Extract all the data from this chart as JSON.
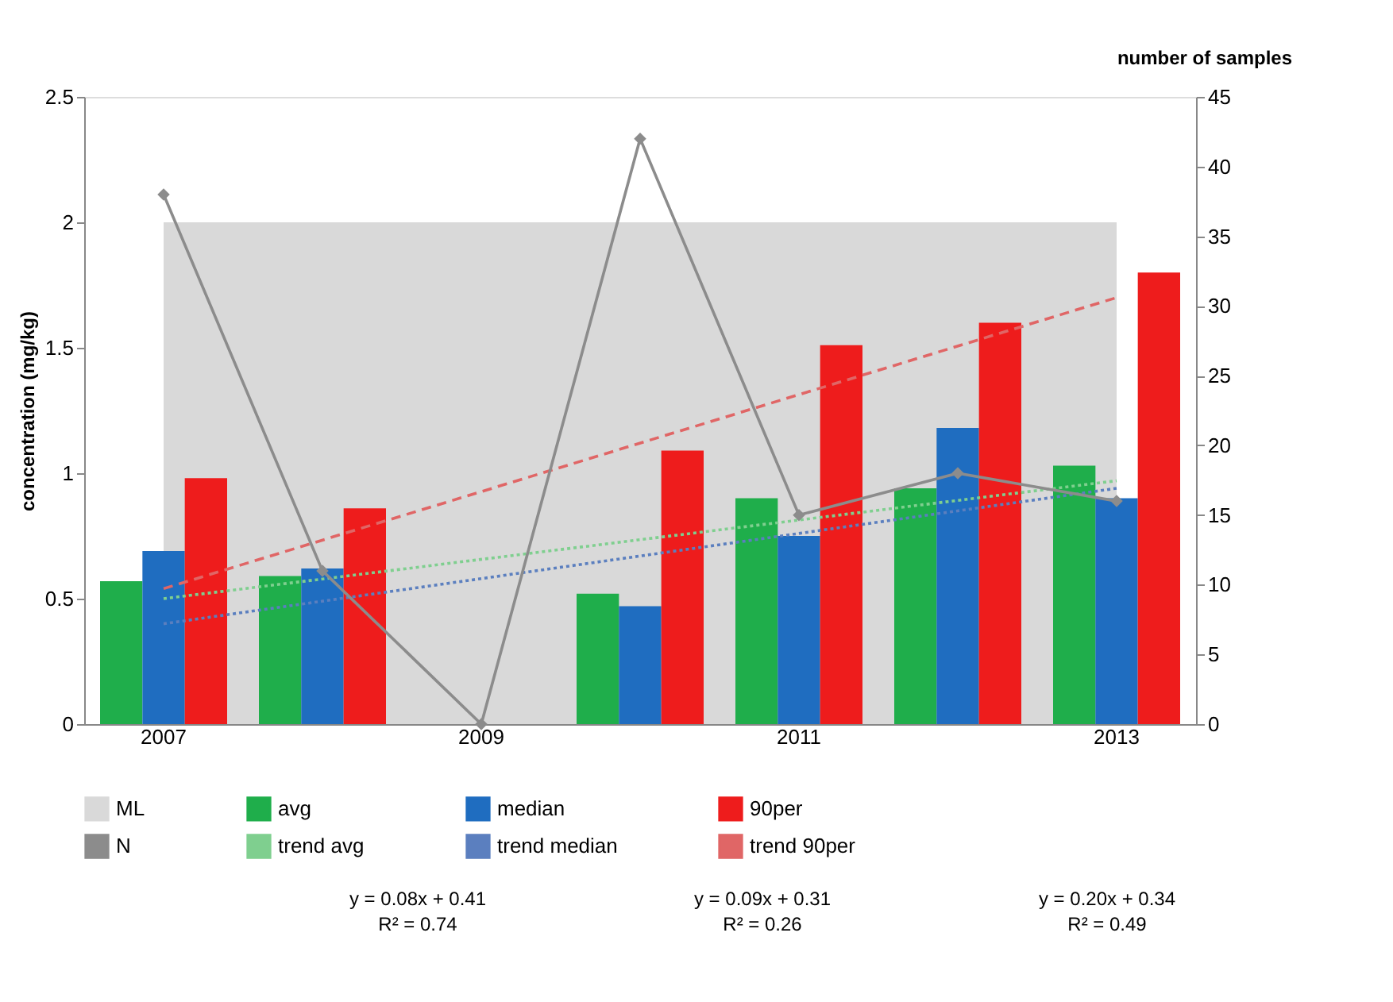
{
  "chart_data": {
    "type": "bar",
    "categories": [
      "2007",
      null,
      "2009",
      null,
      "2011",
      null,
      "2013"
    ],
    "ylabel": "concentration  (mg/kg)",
    "y2label": "number of samples",
    "ylim": [
      0,
      2.5
    ],
    "yticks": [
      0,
      0.5,
      1,
      1.5,
      2,
      2.5
    ],
    "y2lim": [
      0,
      45
    ],
    "y2ticks": [
      0,
      5,
      10,
      15,
      20,
      25,
      30,
      35,
      40,
      45
    ],
    "grid": false,
    "legend": "bottom",
    "series": [
      {
        "name": "ML",
        "type": "area",
        "color": "#d9d9d9",
        "values": [
          2,
          2,
          2,
          2,
          2,
          2,
          2
        ]
      },
      {
        "name": "avg",
        "color": "#1fae4b",
        "values": [
          0.57,
          0.59,
          null,
          0.52,
          0.9,
          0.94,
          1.03
        ]
      },
      {
        "name": "median",
        "color": "#1f6dc0",
        "values": [
          0.69,
          0.62,
          null,
          0.47,
          0.75,
          1.18,
          0.9
        ]
      },
      {
        "name": "90per",
        "color": "#ee1c1c",
        "values": [
          0.98,
          0.86,
          null,
          1.09,
          1.51,
          1.6,
          1.8
        ]
      },
      {
        "name": "N",
        "type": "line",
        "axis": "y2",
        "marker": "diamond",
        "line_style": "solid",
        "color": "#8c8c8c",
        "values": [
          38,
          11,
          0,
          42,
          15,
          18,
          16
        ]
      },
      {
        "name": "trend avg",
        "type": "line",
        "line_style": "dotted",
        "color": "#7fcf8f",
        "values": [
          0.5,
          null,
          null,
          null,
          null,
          null,
          0.97
        ]
      },
      {
        "name": "trend median",
        "type": "line",
        "line_style": "dotted",
        "color": "#5b7fbf",
        "values": [
          0.4,
          null,
          null,
          null,
          null,
          null,
          0.94
        ]
      },
      {
        "name": "trend 90per",
        "type": "line",
        "line_style": "dashed",
        "color": "#e06666",
        "values": [
          0.54,
          null,
          null,
          null,
          null,
          null,
          1.7
        ]
      }
    ],
    "annotations": [
      "y = 0.08x + 0.41\nR² = 0.74",
      "y = 0.09x + 0.31\nR² = 0.26",
      "y = 0.20x + 0.34\nR² = 0.49"
    ]
  }
}
